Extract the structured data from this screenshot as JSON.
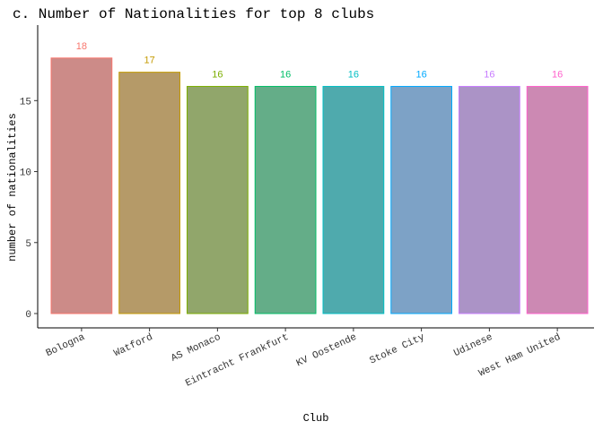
{
  "chart_data": {
    "type": "bar",
    "title": "c. Number of Nationalities for top 8 clubs",
    "xlabel": "Club",
    "ylabel": "number of nationalities",
    "categories": [
      "Bologna",
      "Watford",
      "AS Monaco",
      "Eintracht Frankfurt",
      "KV Oostende",
      "Stoke City",
      "Udinese",
      "West Ham United"
    ],
    "values": [
      18,
      17,
      16,
      16,
      16,
      16,
      16,
      16
    ],
    "data_labels": [
      "18",
      "17",
      "16",
      "16",
      "16",
      "16",
      "16",
      "16"
    ],
    "ylim": [
      0,
      19.5
    ],
    "yticks": [
      0,
      5,
      10,
      15
    ],
    "ytick_labels": [
      "0",
      "5",
      "10",
      "15"
    ],
    "grid": false,
    "legend": "none",
    "colors": {
      "fill": [
        "#cc8b88",
        "#b59a68",
        "#91a66b",
        "#64ad88",
        "#4faaad",
        "#7da2c6",
        "#ab93c6",
        "#cc89b3"
      ],
      "stroke": [
        "#f8766d",
        "#c49a00",
        "#7cae00",
        "#00be67",
        "#00bfc4",
        "#00a9ff",
        "#c77cff",
        "#ff61cc"
      ]
    }
  }
}
